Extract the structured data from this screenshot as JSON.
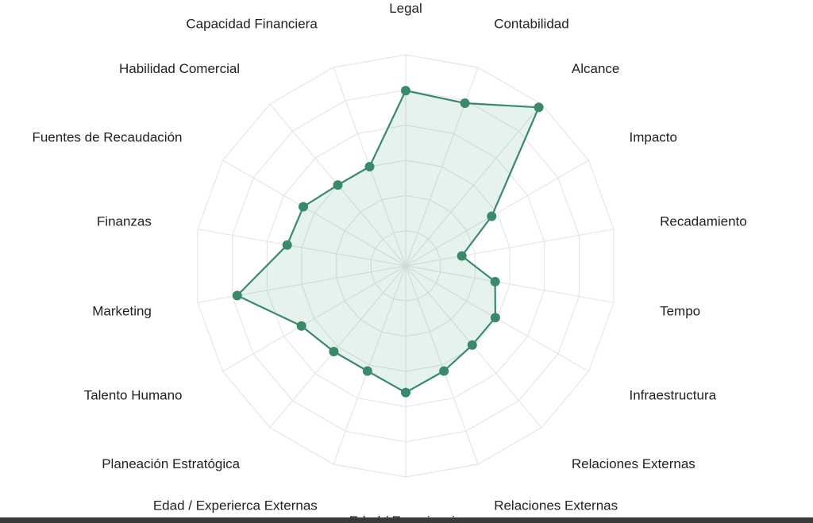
{
  "chart_data": {
    "type": "radar",
    "title": "",
    "categories": [
      "Legal",
      "Contabilidad",
      "Alcance",
      "Impacto",
      "Recadamiento",
      "Tempo",
      "Infraestructura",
      "Relaciones Externas",
      "Relaciones Externas",
      "Edad / Experiencia de la Fundacion",
      "Edad / Experierca Externas",
      "Planeación Estratógica",
      "Talento Humano",
      "Marketing",
      "Finanzas",
      "Fuentes de Recaudación",
      "Habilidad Comercial",
      "Capacidad Financiera"
    ],
    "values": [
      0.83,
      0.82,
      0.98,
      0.47,
      0.27,
      0.43,
      0.49,
      0.49,
      0.53,
      0.6,
      0.53,
      0.53,
      0.57,
      0.81,
      0.57,
      0.56,
      0.5,
      0.5
    ],
    "rlim": [
      0,
      1
    ],
    "rings": 6,
    "grid": true,
    "legend": false,
    "colors": {
      "line": "#3a8a6a",
      "fill": "#3a9a74",
      "marker": "#3a8a6a",
      "grid": "#e6e6e6"
    }
  },
  "labels_display": [
    [
      "Legal"
    ],
    [
      "Contabilidad"
    ],
    [
      "Alcance"
    ],
    [
      "Impacto"
    ],
    [
      "Recadamiento"
    ],
    [
      "Tempo"
    ],
    [
      "Infraestructura"
    ],
    [
      "Relaciones Externas"
    ],
    [
      "Relaciones Externas"
    ],
    [
      "Edad / Experiencia",
      "de la Fundacion"
    ],
    [
      "Edad / Experierca Externas"
    ],
    [
      "Planeación Estratógica"
    ],
    [
      "Talento Humano"
    ],
    [
      "Marketing"
    ],
    [
      "Finanzas"
    ],
    [
      "Fuentes de Recaudación"
    ],
    [
      "Habilidad Comercial"
    ],
    [
      "Capacidad Financiera"
    ]
  ]
}
